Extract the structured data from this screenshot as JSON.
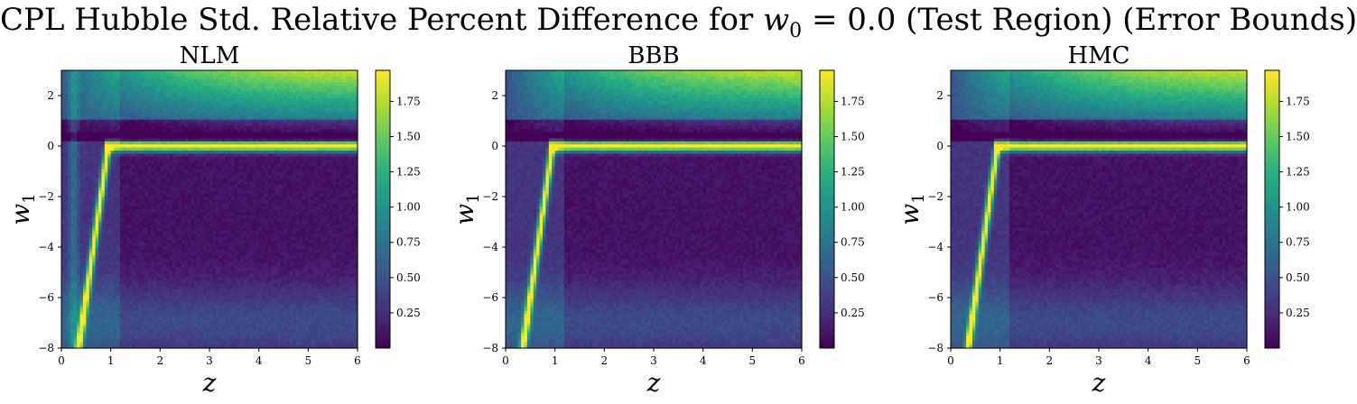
{
  "figure": {
    "title_prefix": "CPL Hubble Std. Relative Percent Difference for ",
    "title_var": "w",
    "title_var_sub": "0",
    "title_suffix": " = 0.0 (Test Region) (Error Bounds)"
  },
  "chart_data": [
    {
      "type": "heatmap",
      "title": "NLM",
      "xlabel": "z",
      "ylabel": "w1",
      "xlim": [
        0,
        6
      ],
      "ylim": [
        -8,
        3
      ],
      "xticks": [
        0,
        1,
        2,
        3,
        4,
        5,
        6
      ],
      "yticks": [
        -8,
        -6,
        -4,
        -2,
        0,
        2
      ],
      "colorbar": {
        "range": [
          0.0,
          1.97
        ],
        "ticks": [
          0.25,
          0.5,
          0.75,
          1.0,
          1.25,
          1.5,
          1.75
        ],
        "tick_labels": [
          "0.25",
          "0.50",
          "0.75",
          "1.00",
          "1.25",
          "1.50",
          "1.75"
        ]
      },
      "colormap": "viridis",
      "grid": false,
      "features": {
        "bright_ridge_along": "w1 = 0 for z > 1",
        "low_z_vertical_structure": true,
        "high_noise_at_w1_below_-6": true
      }
    },
    {
      "type": "heatmap",
      "title": "BBB",
      "xlabel": "z",
      "ylabel": "w1",
      "xlim": [
        0,
        6
      ],
      "ylim": [
        -8,
        3
      ],
      "xticks": [
        0,
        1,
        2,
        3,
        4,
        5,
        6
      ],
      "yticks": [
        -8,
        -6,
        -4,
        -2,
        0,
        2
      ],
      "colorbar": {
        "range": [
          0.0,
          1.97
        ],
        "ticks": [
          0.25,
          0.5,
          0.75,
          1.0,
          1.25,
          1.5,
          1.75
        ],
        "tick_labels": [
          "0.25",
          "0.50",
          "0.75",
          "1.00",
          "1.25",
          "1.50",
          "1.75"
        ]
      },
      "colormap": "viridis",
      "grid": false,
      "features": {
        "bright_ridge_along": "w1 = 0 for z > 1",
        "low_z_vertical_structure": false,
        "high_noise_at_w1_below_-6": false
      }
    },
    {
      "type": "heatmap",
      "title": "HMC",
      "xlabel": "z",
      "ylabel": "w1",
      "xlim": [
        0,
        6
      ],
      "ylim": [
        -8,
        3
      ],
      "xticks": [
        0,
        1,
        2,
        3,
        4,
        5,
        6
      ],
      "yticks": [
        -8,
        -6,
        -4,
        -2,
        0,
        2
      ],
      "colorbar": {
        "range": [
          0.0,
          1.97
        ],
        "ticks": [
          0.25,
          0.5,
          0.75,
          1.0,
          1.25,
          1.5,
          1.75
        ],
        "tick_labels": [
          "0.25",
          "0.50",
          "0.75",
          "1.00",
          "1.25",
          "1.50",
          "1.75"
        ]
      },
      "colormap": "viridis",
      "grid": false,
      "features": {
        "bright_ridge_along": "w1 = 0 for z > 1",
        "low_z_vertical_structure": false,
        "high_noise_at_w1_below_-6": false
      }
    }
  ]
}
